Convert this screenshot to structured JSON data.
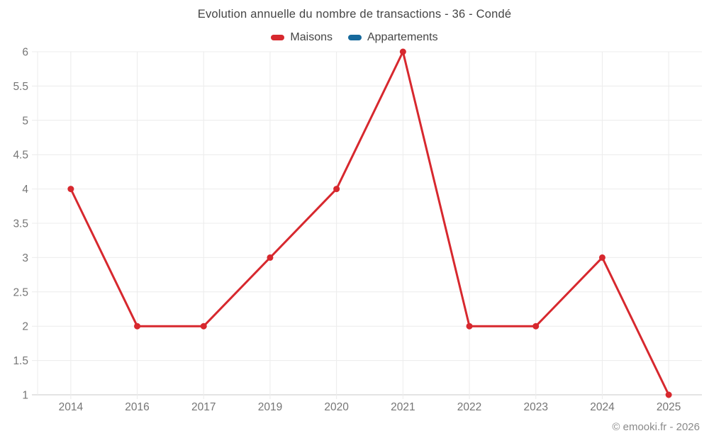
{
  "header": {
    "title": "Evolution annuelle du nombre de transactions - 36 - Condé"
  },
  "legend": {
    "items": [
      {
        "label": "Maisons",
        "color": "#d7282e"
      },
      {
        "label": "Appartements",
        "color": "#16699c"
      }
    ]
  },
  "footer": {
    "credit": "© emooki.fr - 2026"
  },
  "colors": {
    "grid": "#ececec",
    "axis_line": "#c9c9c9",
    "tick_label": "#757575",
    "series_maisons": "#d7282e",
    "series_appartements": "#16699c"
  },
  "chart_data": {
    "type": "line",
    "title": "Evolution annuelle du nombre de transactions - 36 - Condé",
    "categories": [
      "2014",
      "2016",
      "2017",
      "2019",
      "2020",
      "2021",
      "2022",
      "2023",
      "2024",
      "2025"
    ],
    "series": [
      {
        "name": "Maisons",
        "color": "#d7282e",
        "values": [
          4,
          2,
          2,
          3,
          4,
          6,
          2,
          2,
          3,
          1
        ]
      },
      {
        "name": "Appartements",
        "color": "#16699c",
        "values": []
      }
    ],
    "xlabel": "",
    "ylabel": "",
    "ylim": [
      1,
      6
    ],
    "ytick_step": 0.5,
    "grid": true,
    "legend_position": "top",
    "point_radius": 4.5,
    "line_width": 3
  }
}
